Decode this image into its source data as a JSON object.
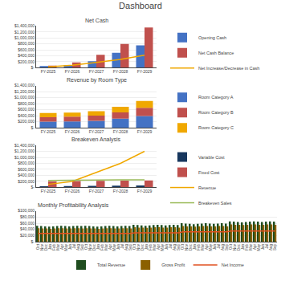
{
  "title": "Dashboard",
  "chart_data": [
    {
      "type": "bar",
      "title": "Net Cash",
      "categories": [
        "FY-2025",
        "FY-2026",
        "FY-2027",
        "FY-2028",
        "FY-2029"
      ],
      "series": [
        {
          "name": "Opening Cash",
          "type": "bar",
          "color": "#4472c4",
          "values": [
            30000,
            80000,
            220000,
            500000,
            750000
          ]
        },
        {
          "name": "Net Cash Balance",
          "type": "bar",
          "color": "#c0504d",
          "values": [
            70000,
            180000,
            430000,
            800000,
            1350000
          ]
        },
        {
          "name": "Net Increase/Decrease in Cash",
          "type": "line",
          "color": "#f0a800",
          "values": [
            30000,
            80000,
            180000,
            280000,
            420000
          ]
        }
      ],
      "ylim": [
        0,
        1400000
      ],
      "yticks": [
        {
          "value": 0,
          "label": "$-"
        },
        {
          "value": 200000,
          "label": "$200,000"
        },
        {
          "value": 400000,
          "label": "$400,000"
        },
        {
          "value": 600000,
          "label": "$600,000"
        },
        {
          "value": 800000,
          "label": "$800,000"
        },
        {
          "value": 1000000,
          "label": "$1,000,000"
        },
        {
          "value": 1200000,
          "label": "$1,200,000"
        },
        {
          "value": 1400000,
          "label": "$1,400,000"
        }
      ],
      "grid": true
    },
    {
      "type": "bar",
      "title": "Revenue by Room Type",
      "stacked": true,
      "categories": [
        "FY-2025",
        "FY-2026",
        "FY-2027",
        "FY-2028",
        "FY-2029"
      ],
      "series": [
        {
          "name": "Room Category A",
          "type": "bar",
          "color": "#4472c4",
          "values": [
            200000,
            210000,
            230000,
            300000,
            390000
          ]
        },
        {
          "name": "Room Category B",
          "type": "bar",
          "color": "#c0504d",
          "values": [
            150000,
            160000,
            170000,
            210000,
            270000
          ]
        },
        {
          "name": "Room Category C",
          "type": "bar",
          "color": "#f0a800",
          "values": [
            140000,
            130000,
            150000,
            185000,
            230000
          ]
        }
      ],
      "ylim": [
        0,
        1400000
      ],
      "yticks": [
        {
          "value": 0,
          "label": "$-"
        },
        {
          "value": 200000,
          "label": "$200,000"
        },
        {
          "value": 400000,
          "label": "$400,000"
        },
        {
          "value": 600000,
          "label": "$600,000"
        },
        {
          "value": 800000,
          "label": "$800,000"
        },
        {
          "value": 1000000,
          "label": "$1,000,000"
        },
        {
          "value": 1200000,
          "label": "$1,200,000"
        },
        {
          "value": 1400000,
          "label": "$1,400,000"
        }
      ],
      "grid": true
    },
    {
      "type": "bar",
      "title": "Breakeven Analysis",
      "categories": [
        "FY-2025",
        "FY-2026",
        "FY-2027",
        "FY-2028",
        "FY-2029"
      ],
      "series": [
        {
          "name": "Variable Cost",
          "type": "bar",
          "color": "#17375e",
          "values": [
            30000,
            40000,
            50000,
            55000,
            60000
          ]
        },
        {
          "name": "Fixed Cost",
          "type": "bar",
          "color": "#c0504d",
          "values": [
            200000,
            210000,
            220000,
            225000,
            230000
          ]
        },
        {
          "name": "Revenue",
          "type": "line",
          "color": "#f0a800",
          "values": [
            100000,
            200000,
            500000,
            800000,
            1200000
          ]
        },
        {
          "name": "Breakeven Sales",
          "type": "line",
          "color": "#9bbb59",
          "values": [
            230000,
            240000,
            245000,
            248000,
            250000
          ]
        }
      ],
      "ylim": [
        0,
        1400000
      ],
      "yticks": [
        {
          "value": 0,
          "label": "$-"
        },
        {
          "value": 200000,
          "label": "$200,000"
        },
        {
          "value": 400000,
          "label": "$400,000"
        },
        {
          "value": 600000,
          "label": "$600,000"
        },
        {
          "value": 800000,
          "label": "$800,000"
        },
        {
          "value": 1000000,
          "label": "$1,000,000"
        },
        {
          "value": 1200000,
          "label": "$1,200,000"
        },
        {
          "value": 1400000,
          "label": "$1,400,000"
        }
      ],
      "grid": true
    },
    {
      "type": "bar",
      "title": "Monthly Profitability Analysis",
      "categories": [
        "Oct",
        "Nov",
        "Dec",
        "Jan",
        "Feb",
        "Mar",
        "Apr",
        "May",
        "Jun",
        "Jul",
        "Aug",
        "Sep",
        "Oct",
        "Nov",
        "Dec",
        "Jan",
        "Feb",
        "Mar",
        "Apr",
        "May",
        "Jun",
        "Jul",
        "Aug",
        "Sep",
        "Oct",
        "Nov",
        "Dec",
        "Jan",
        "Feb",
        "Mar",
        "Apr",
        "May",
        "Jun",
        "Jul",
        "Aug",
        "Sep",
        "Oct",
        "Nov",
        "Dec",
        "Jan",
        "Feb",
        "Mar",
        "Apr",
        "May",
        "Jun",
        "Jul",
        "Aug",
        "Sep",
        "Oct",
        "Nov",
        "Dec",
        "Jan",
        "Feb",
        "Mar",
        "Apr",
        "May",
        "Jun",
        "Jul",
        "Aug",
        "Sep"
      ],
      "series": [
        {
          "name": "Total Revenue",
          "type": "bar",
          "color": "#1f4d1f",
          "values": [
            52000,
            51000,
            50000,
            49000,
            50000,
            51000,
            52000,
            51000,
            50000,
            51000,
            52000,
            51000,
            52000,
            51000,
            50000,
            49000,
            50000,
            51000,
            52000,
            51000,
            50000,
            51000,
            52000,
            51000,
            55000,
            54000,
            53000,
            52000,
            53000,
            54000,
            55000,
            54000,
            53000,
            54000,
            55000,
            54000,
            60000,
            59000,
            58000,
            57000,
            58000,
            59000,
            60000,
            59000,
            58000,
            59000,
            60000,
            59000,
            66000,
            65000,
            64000,
            63000,
            64000,
            65000,
            66000,
            65000,
            64000,
            65000,
            66000,
            65000
          ]
        },
        {
          "name": "Gross Profit",
          "type": "bar",
          "color": "#8b6000",
          "values": [
            44000,
            43000,
            43000,
            42000,
            43000,
            44000,
            44000,
            43000,
            43000,
            44000,
            44000,
            43000,
            44000,
            43000,
            43000,
            42000,
            43000,
            44000,
            44000,
            43000,
            43000,
            44000,
            44000,
            43000,
            47000,
            46000,
            46000,
            45000,
            46000,
            47000,
            47000,
            46000,
            46000,
            47000,
            47000,
            46000,
            51000,
            50000,
            50000,
            49000,
            50000,
            51000,
            51000,
            50000,
            50000,
            51000,
            51000,
            50000,
            56000,
            55000,
            55000,
            54000,
            55000,
            56000,
            56000,
            55000,
            55000,
            56000,
            56000,
            55000
          ]
        },
        {
          "name": "Net Income",
          "type": "line",
          "color": "#e05020",
          "values": [
            27000,
            27000,
            27000,
            26000,
            27000,
            27000,
            27000,
            27000,
            27000,
            27000,
            27000,
            27000,
            27000,
            27000,
            27000,
            26000,
            27000,
            27000,
            27000,
            27000,
            27000,
            27000,
            27000,
            27000,
            29000,
            29000,
            29000,
            28000,
            29000,
            29000,
            29000,
            29000,
            29000,
            29000,
            29000,
            29000,
            32000,
            32000,
            32000,
            31000,
            32000,
            32000,
            32000,
            32000,
            32000,
            32000,
            32000,
            32000,
            35000,
            35000,
            35000,
            34000,
            35000,
            35000,
            35000,
            35000,
            35000,
            35000,
            35000,
            35000
          ]
        }
      ],
      "ylim": [
        0,
        100000
      ],
      "yticks": [
        {
          "value": 0,
          "label": "$-"
        },
        {
          "value": 20000,
          "label": "$20,000"
        },
        {
          "value": 40000,
          "label": "$40,000"
        },
        {
          "value": 60000,
          "label": "$60,000"
        },
        {
          "value": 80000,
          "label": "$80,000"
        },
        {
          "value": 100000,
          "label": "$100,000"
        }
      ],
      "grid": true
    }
  ]
}
